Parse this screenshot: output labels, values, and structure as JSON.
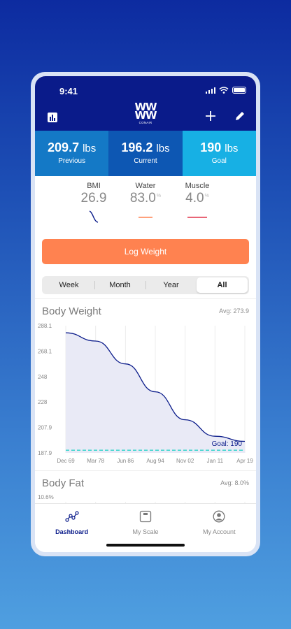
{
  "status": {
    "time": "9:41"
  },
  "header": {
    "logo_main": "WW",
    "logo_sub": "CONAIR",
    "icons": [
      "chart-icon",
      "plus-icon",
      "pencil-icon"
    ]
  },
  "weights": [
    {
      "value": "209.7",
      "unit": "lbs",
      "label": "Previous",
      "color": "#1479c6"
    },
    {
      "value": "196.2",
      "unit": "lbs",
      "label": "Current",
      "color": "#0d57b3"
    },
    {
      "value": "190",
      "unit": "lbs",
      "label": "Goal",
      "color": "#17b0e4"
    }
  ],
  "metrics": [
    {
      "name": "BMI",
      "value": "26.9",
      "unit": "",
      "trend_color": "#0a1b8a"
    },
    {
      "name": "Water",
      "value": "83.0",
      "unit": "%",
      "trend_color": "#ff8250"
    },
    {
      "name": "Muscle",
      "value": "4.0",
      "unit": "%",
      "trend_color": "#e0344a"
    }
  ],
  "log_button": "Log Weight",
  "periods": {
    "options": [
      "Week",
      "Month",
      "Year",
      "All"
    ],
    "selected": "All"
  },
  "body_weight": {
    "title": "Body Weight",
    "avg": "Avg: 273.9",
    "goal_label": "Goal: 190",
    "y_ticks": [
      "288.1",
      "268.1",
      "248",
      "228",
      "207.9",
      "187.9"
    ],
    "x_ticks": [
      "Dec 69",
      "Mar 78",
      "Jun 86",
      "Aug 94",
      "Nov 02",
      "Jan 11",
      "Apr 19"
    ]
  },
  "body_fat": {
    "title": "Body Fat",
    "avg": "Avg: 8.0%",
    "y_ticks": [
      "10.6%"
    ]
  },
  "chart_data": {
    "type": "area",
    "title": "Body Weight",
    "x": [
      "Dec 69",
      "Mar 78",
      "Jun 86",
      "Aug 94",
      "Nov 02",
      "Jan 11",
      "Apr 19"
    ],
    "series": [
      {
        "values": [
          282.5,
          276,
          258,
          236,
          214,
          201,
          197
        ]
      }
    ],
    "goal": 190,
    "ylim": [
      187.9,
      288.1
    ],
    "grid": true
  },
  "bottom_nav": [
    {
      "label": "Dashboard",
      "icon": "dashboard-icon",
      "active": true
    },
    {
      "label": "My Scale",
      "icon": "scale-icon",
      "active": false
    },
    {
      "label": "My Account",
      "icon": "account-icon",
      "active": false
    }
  ]
}
